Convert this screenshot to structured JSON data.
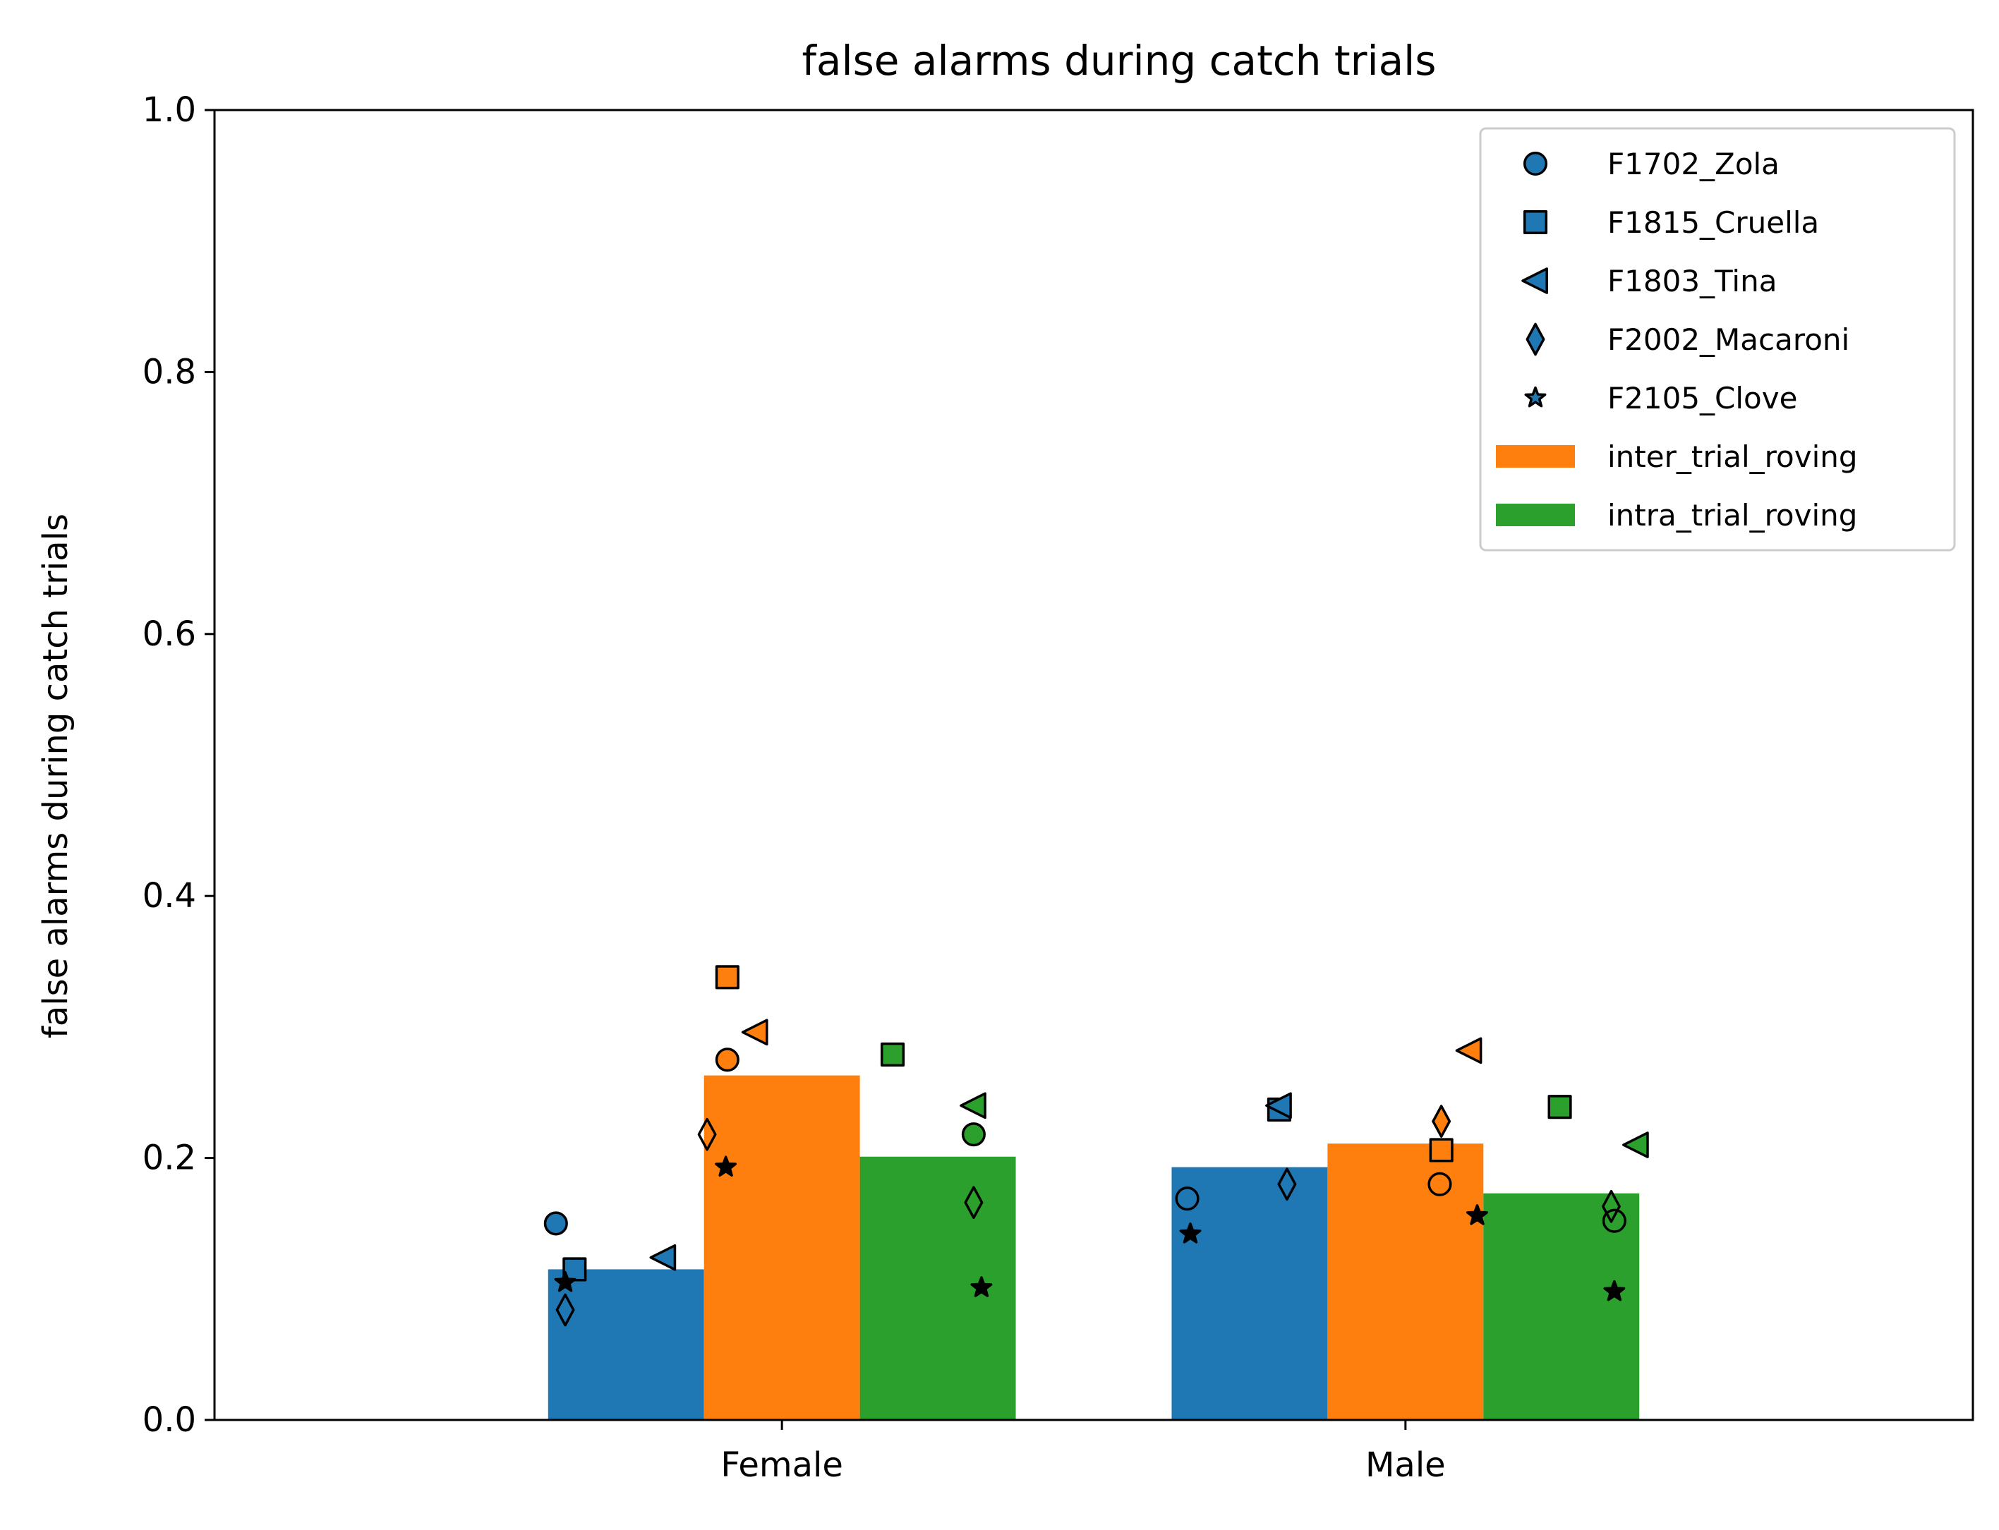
{
  "chart_data": {
    "type": "bar",
    "title": "false alarms during catch trials",
    "xlabel": "",
    "ylabel": "false alarms during catch trials",
    "ylim": [
      0.0,
      1.0
    ],
    "yticks": [
      "0.0",
      "0.2",
      "0.4",
      "0.6",
      "0.8",
      "1.0"
    ],
    "categories": [
      "Female",
      "Male"
    ],
    "grid": false,
    "legend_position": "top-right",
    "series": [
      {
        "key": "control",
        "name": "",
        "color": "#1f77b4",
        "values": [
          0.115,
          0.193
        ]
      },
      {
        "key": "inter",
        "name": "inter_trial_roving",
        "color": "#ff7f0e",
        "values": [
          0.263,
          0.211
        ]
      },
      {
        "key": "intra",
        "name": "intra_trial_roving",
        "color": "#2ca02c",
        "values": [
          0.201,
          0.173
        ]
      }
    ],
    "animals": [
      {
        "name": "F1702_Zola",
        "marker": "circle"
      },
      {
        "name": "F1815_Cruella",
        "marker": "square"
      },
      {
        "name": "F1803_Tina",
        "marker": "triangle-left"
      },
      {
        "name": "F2002_Macaroni",
        "marker": "diamond"
      },
      {
        "name": "F2105_Clove",
        "marker": "star"
      }
    ],
    "points": [
      {
        "category": "Female",
        "series": "control",
        "animal": "F1702_Zola",
        "value": 0.15
      },
      {
        "category": "Female",
        "series": "control",
        "animal": "F1815_Cruella",
        "value": 0.115
      },
      {
        "category": "Female",
        "series": "control",
        "animal": "F1803_Tina",
        "value": 0.124
      },
      {
        "category": "Female",
        "series": "control",
        "animal": "F2002_Macaroni",
        "value": 0.084
      },
      {
        "category": "Female",
        "series": "control",
        "animal": "F2105_Clove",
        "value": 0.105
      },
      {
        "category": "Female",
        "series": "inter",
        "animal": "F1702_Zola",
        "value": 0.275
      },
      {
        "category": "Female",
        "series": "inter",
        "animal": "F1815_Cruella",
        "value": 0.338
      },
      {
        "category": "Female",
        "series": "inter",
        "animal": "F1803_Tina",
        "value": 0.296
      },
      {
        "category": "Female",
        "series": "inter",
        "animal": "F2002_Macaroni",
        "value": 0.218
      },
      {
        "category": "Female",
        "series": "inter",
        "animal": "F2105_Clove",
        "value": 0.193
      },
      {
        "category": "Female",
        "series": "intra",
        "animal": "F1702_Zola",
        "value": 0.218
      },
      {
        "category": "Female",
        "series": "intra",
        "animal": "F1815_Cruella",
        "value": 0.279
      },
      {
        "category": "Female",
        "series": "intra",
        "animal": "F1803_Tina",
        "value": 0.24
      },
      {
        "category": "Female",
        "series": "intra",
        "animal": "F2002_Macaroni",
        "value": 0.166
      },
      {
        "category": "Female",
        "series": "intra",
        "animal": "F2105_Clove",
        "value": 0.101
      },
      {
        "category": "Male",
        "series": "control",
        "animal": "F1702_Zola",
        "value": 0.169
      },
      {
        "category": "Male",
        "series": "control",
        "animal": "F1815_Cruella",
        "value": 0.237
      },
      {
        "category": "Male",
        "series": "control",
        "animal": "F1803_Tina",
        "value": 0.24
      },
      {
        "category": "Male",
        "series": "control",
        "animal": "F2002_Macaroni",
        "value": 0.18
      },
      {
        "category": "Male",
        "series": "control",
        "animal": "F2105_Clove",
        "value": 0.142
      },
      {
        "category": "Male",
        "series": "inter",
        "animal": "F1702_Zola",
        "value": 0.18
      },
      {
        "category": "Male",
        "series": "inter",
        "animal": "F1815_Cruella",
        "value": 0.206
      },
      {
        "category": "Male",
        "series": "inter",
        "animal": "F1803_Tina",
        "value": 0.282
      },
      {
        "category": "Male",
        "series": "inter",
        "animal": "F2002_Macaroni",
        "value": 0.228
      },
      {
        "category": "Male",
        "series": "inter",
        "animal": "F2105_Clove",
        "value": 0.156
      },
      {
        "category": "Male",
        "series": "intra",
        "animal": "F1702_Zola",
        "value": 0.152
      },
      {
        "category": "Male",
        "series": "intra",
        "animal": "F1815_Cruella",
        "value": 0.239
      },
      {
        "category": "Male",
        "series": "intra",
        "animal": "F1803_Tina",
        "value": 0.21
      },
      {
        "category": "Male",
        "series": "intra",
        "animal": "F2002_Macaroni",
        "value": 0.163
      },
      {
        "category": "Male",
        "series": "intra",
        "animal": "F2105_Clove",
        "value": 0.098
      }
    ]
  }
}
